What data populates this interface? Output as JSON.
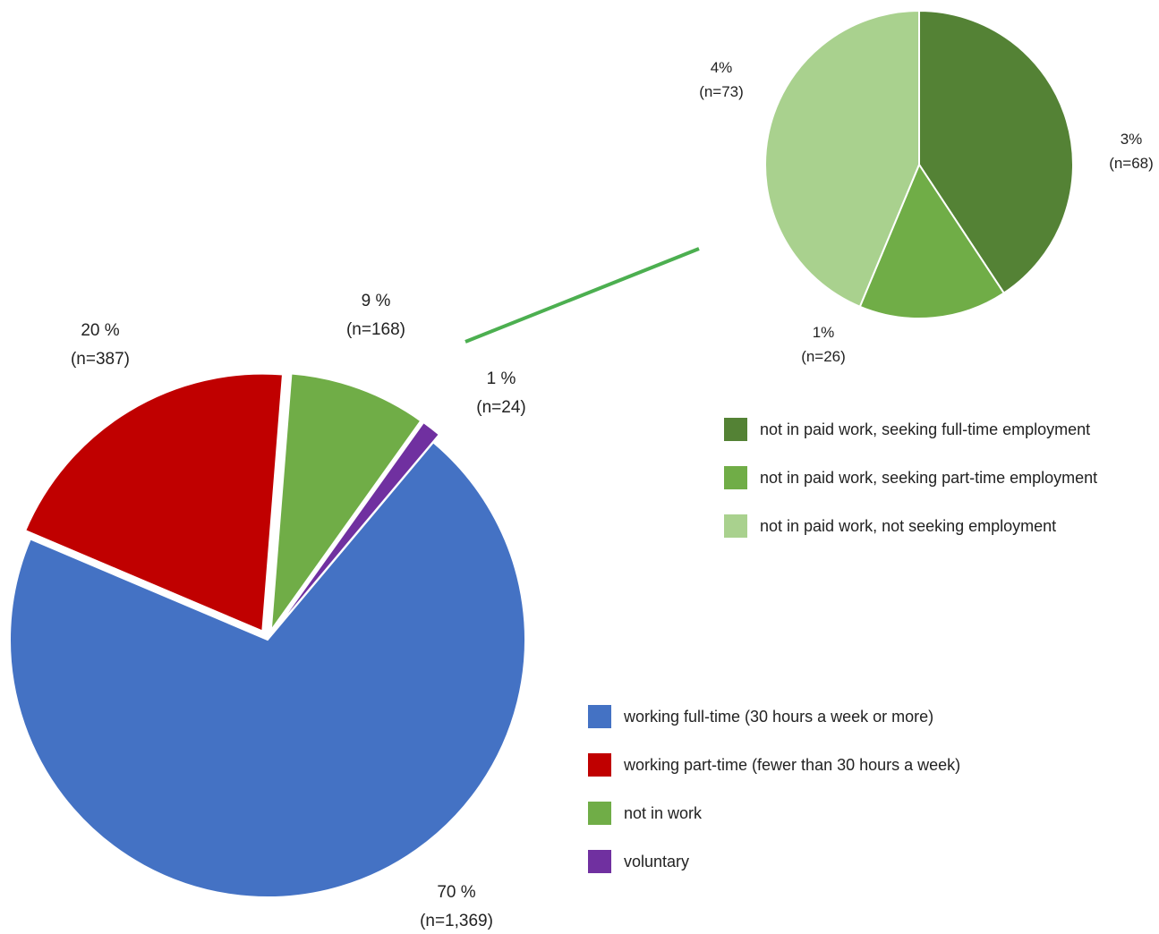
{
  "chart_data": [
    {
      "type": "pie",
      "title": "",
      "slices": [
        {
          "name": "working full-time (30 hours a week or more)",
          "value": 1369,
          "percent_label": "70 %",
          "n_label": "(n=1,369)",
          "color": "#4472C4",
          "exploded": false
        },
        {
          "name": "working part-time (fewer than 30 hours a week)",
          "value": 387,
          "percent_label": "20 %",
          "n_label": "(n=387)",
          "color": "#C00000",
          "exploded": true
        },
        {
          "name": "not in work",
          "value": 168,
          "percent_label": "9 %",
          "n_label": "(n=168)",
          "color": "#70AD47",
          "exploded": true
        },
        {
          "name": "voluntary",
          "value": 24,
          "percent_label": "1 %",
          "n_label": "(n=24)",
          "color": "#7030A0",
          "exploded": true
        }
      ],
      "legend_position": "bottom-right"
    },
    {
      "type": "pie",
      "title": "",
      "breakdown_of": "not in work",
      "slices": [
        {
          "name": "not in paid work, seeking full-time employment",
          "value": 68,
          "percent_label": "3%",
          "n_label": "(n=68)",
          "color": "#548235"
        },
        {
          "name": "not in paid work, seeking part-time employment",
          "value": 26,
          "percent_label": "1%",
          "n_label": "(n=26)",
          "color": "#70AD47"
        },
        {
          "name": "not in paid work, not seeking employment",
          "value": 73,
          "percent_label": "4%",
          "n_label": "(n=73)",
          "color": "#A9D18E"
        }
      ],
      "legend_position": "middle-right"
    }
  ],
  "connector_color": "#4CAF50"
}
